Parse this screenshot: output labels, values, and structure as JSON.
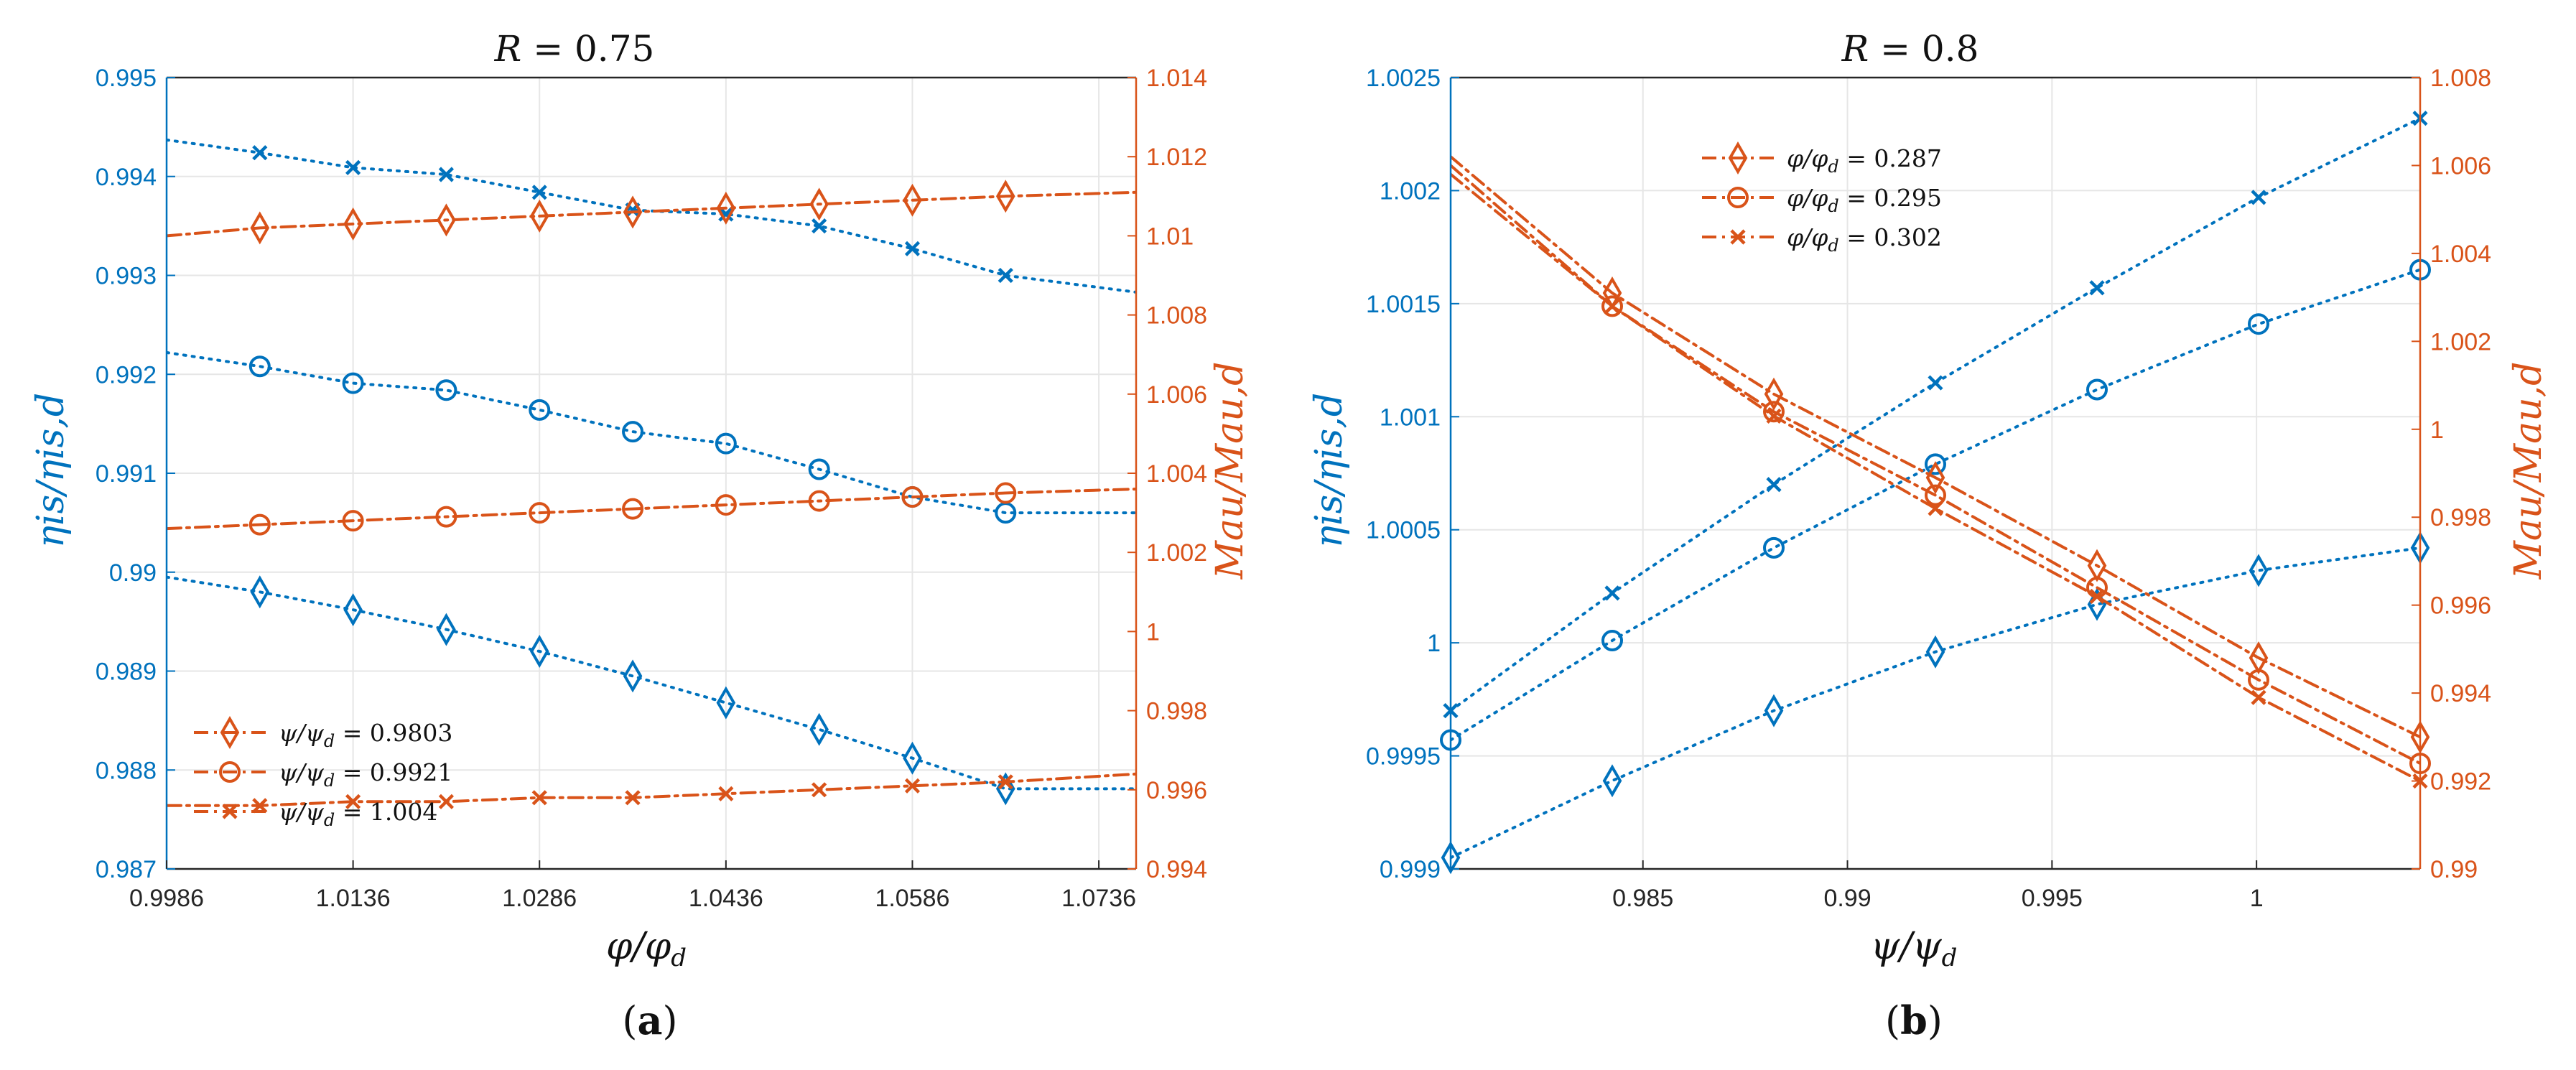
{
  "colors": {
    "left": "#0072BD",
    "right": "#D95319",
    "grid": "#e6e6e6",
    "axis": "#262626"
  },
  "chart_data": [
    {
      "type": "line",
      "title": "R = 0.75",
      "title_var": "R",
      "title_rest": " = 0.75",
      "caption": "a",
      "xlabel": "φ/φd",
      "xlabel_main": "φ/φ",
      "xlabel_sub": "d",
      "ylabel_left": "ηis/ηis,d",
      "ylabel_right": "Mau/Mau,d",
      "xlim": [
        0.9986,
        1.0766
      ],
      "ylim_left": [
        0.987,
        0.995
      ],
      "ylim_right": [
        0.994,
        1.014
      ],
      "xticks": [
        0.9986,
        1.0136,
        1.0286,
        1.0436,
        1.0586,
        1.0736
      ],
      "xtick_labels": [
        "0.9986",
        "1.0136",
        "1.0286",
        "1.0436",
        "1.0586",
        "1.0736"
      ],
      "yticks_left": [
        0.987,
        0.988,
        0.989,
        0.99,
        0.991,
        0.992,
        0.993,
        0.994,
        0.995
      ],
      "ytick_labels_left": [
        "0.987",
        "0.988",
        "0.989",
        "0.99",
        "0.991",
        "0.992",
        "0.993",
        "0.994",
        "0.995"
      ],
      "yticks_right": [
        0.994,
        0.996,
        0.998,
        1.0,
        1.002,
        1.004,
        1.006,
        1.008,
        1.01,
        1.012,
        1.014
      ],
      "ytick_labels_right": [
        "0.994",
        "0.996",
        "0.998",
        "1",
        "1.002",
        "1.004",
        "1.006",
        "1.008",
        "1.01",
        "1.012",
        "1.014"
      ],
      "legend": [
        {
          "text": "ψ/ψd = 0.9803",
          "var": "ψ/ψ",
          "sub": "d",
          "value": " = 0.9803",
          "marker": "diamond"
        },
        {
          "text": "ψ/ψd = 0.9921",
          "var": "ψ/ψ",
          "sub": "d",
          "value": " = 0.9921",
          "marker": "circle"
        },
        {
          "text": "ψ/ψd = 1.004",
          "var": "ψ/ψ",
          "sub": "d",
          "value": " = 1.004",
          "marker": "x"
        }
      ],
      "series": [
        {
          "name": "ηis/ηis,d, ψ/ψd = 1.004",
          "axis": "left",
          "marker": "x",
          "style": "dotted",
          "x": [
            0.9986,
            1.0061,
            1.0136,
            1.0211,
            1.0286,
            1.0361,
            1.0436,
            1.0511,
            1.0586,
            1.0661,
            1.0766
          ],
          "y": [
            0.99437,
            0.99424,
            0.99409,
            0.99402,
            0.99384,
            0.99366,
            0.99362,
            0.9935,
            0.99327,
            0.993,
            0.99283
          ],
          "marker_x": [
            1.0061,
            1.0136,
            1.0211,
            1.0286,
            1.0361,
            1.0436,
            1.0511,
            1.0586,
            1.0661
          ]
        },
        {
          "name": "ηis/ηis,d, ψ/ψd = 0.9921",
          "axis": "left",
          "marker": "circle",
          "style": "dotted",
          "x": [
            0.9986,
            1.0061,
            1.0136,
            1.0211,
            1.0286,
            1.0361,
            1.0436,
            1.0511,
            1.0586,
            1.0661,
            1.0766
          ],
          "y": [
            0.99222,
            0.99208,
            0.99191,
            0.99184,
            0.99164,
            0.99142,
            0.9913,
            0.99104,
            0.99076,
            0.9906,
            0.9906
          ],
          "marker_x": [
            1.0061,
            1.0136,
            1.0211,
            1.0286,
            1.0361,
            1.0436,
            1.0511,
            1.0586,
            1.0661
          ]
        },
        {
          "name": "ηis/ηis,d, ψ/ψd = 0.9803",
          "axis": "left",
          "marker": "diamond",
          "style": "dotted",
          "x": [
            0.9986,
            1.0061,
            1.0136,
            1.0211,
            1.0286,
            1.0361,
            1.0436,
            1.0511,
            1.0586,
            1.0661,
            1.0766
          ],
          "y": [
            0.98995,
            0.9898,
            0.98962,
            0.98942,
            0.9892,
            0.98895,
            0.98868,
            0.98841,
            0.98812,
            0.98781,
            0.98781
          ],
          "marker_x": [
            1.0061,
            1.0136,
            1.0211,
            1.0286,
            1.0361,
            1.0436,
            1.0511,
            1.0586,
            1.0661
          ]
        },
        {
          "name": "Mau/Mau,d, ψ/ψd = 0.9803",
          "axis": "right",
          "marker": "diamond",
          "style": "dashdot",
          "x": [
            0.9986,
            1.0061,
            1.0136,
            1.0211,
            1.0286,
            1.0361,
            1.0436,
            1.0511,
            1.0586,
            1.0661,
            1.0766
          ],
          "y": [
            1.01,
            1.0102,
            1.0103,
            1.0104,
            1.0105,
            1.0106,
            1.0107,
            1.0108,
            1.0109,
            1.011,
            1.0111
          ],
          "marker_x": [
            1.0061,
            1.0136,
            1.0211,
            1.0286,
            1.0361,
            1.0436,
            1.0511,
            1.0586,
            1.0661
          ]
        },
        {
          "name": "Mau/Mau,d, ψ/ψd = 0.9921",
          "axis": "right",
          "marker": "circle",
          "style": "dashdot",
          "x": [
            0.9986,
            1.0061,
            1.0136,
            1.0211,
            1.0286,
            1.0361,
            1.0436,
            1.0511,
            1.0586,
            1.0661,
            1.0766
          ],
          "y": [
            1.0026,
            1.0027,
            1.0028,
            1.0029,
            1.003,
            1.0031,
            1.0032,
            1.0033,
            1.0034,
            1.0035,
            1.0036
          ],
          "marker_x": [
            1.0061,
            1.0136,
            1.0211,
            1.0286,
            1.0361,
            1.0436,
            1.0511,
            1.0586,
            1.0661
          ]
        },
        {
          "name": "Mau/Mau,d, ψ/ψd = 1.004",
          "axis": "right",
          "marker": "x",
          "style": "dashdot",
          "x": [
            0.9986,
            1.0061,
            1.0136,
            1.0211,
            1.0286,
            1.0361,
            1.0436,
            1.0511,
            1.0586,
            1.0661,
            1.0766
          ],
          "y": [
            0.9956,
            0.9956,
            0.9957,
            0.9957,
            0.9958,
            0.9958,
            0.9959,
            0.996,
            0.9961,
            0.9962,
            0.9964
          ],
          "marker_x": [
            1.0061,
            1.0136,
            1.0211,
            1.0286,
            1.0361,
            1.0436,
            1.0511,
            1.0586,
            1.0661
          ]
        }
      ]
    },
    {
      "type": "line",
      "title": "R = 0.8",
      "title_var": "R",
      "title_rest": " = 0.8",
      "caption": "b",
      "xlabel": "ψ/ψd",
      "xlabel_main": "ψ/ψ",
      "xlabel_sub": "d",
      "ylabel_left": "ηis/ηis,d",
      "ylabel_right": "Mau/Mau,d",
      "xlim": [
        0.9803,
        1.004
      ],
      "ylim_left": [
        0.999,
        1.0025
      ],
      "ylim_right": [
        0.99,
        1.008
      ],
      "xticks": [
        0.985,
        0.99,
        0.995,
        1.0
      ],
      "xtick_labels": [
        "0.985",
        "0.99",
        "0.995",
        "1"
      ],
      "yticks_left": [
        0.999,
        0.9995,
        1.0,
        1.0005,
        1.001,
        1.0015,
        1.002,
        1.0025
      ],
      "ytick_labels_left": [
        "0.999",
        "0.9995",
        "1",
        "1.0005",
        "1.001",
        "1.0015",
        "1.002",
        "1.0025"
      ],
      "yticks_right": [
        0.99,
        0.992,
        0.994,
        0.996,
        0.998,
        1.0,
        1.002,
        1.004,
        1.006,
        1.008
      ],
      "ytick_labels_right": [
        "0.99",
        "0.992",
        "0.994",
        "0.996",
        "0.998",
        "1",
        "1.002",
        "1.004",
        "1.006",
        "1.008"
      ],
      "legend": [
        {
          "text": "φ/φd = 0.287",
          "var": "φ/φ",
          "sub": "d",
          "value": " = 0.287",
          "marker": "diamond"
        },
        {
          "text": "φ/φd = 0.295",
          "var": "φ/φ",
          "sub": "d",
          "value": " = 0.295",
          "marker": "circle"
        },
        {
          "text": "φ/φd = 0.302",
          "var": "φ/φ",
          "sub": "d",
          "value": " = 0.302",
          "marker": "x"
        }
      ],
      "series": [
        {
          "name": "ηis/ηis,d, φ/φd = 0.302",
          "axis": "left",
          "marker": "x",
          "style": "dotted",
          "x": [
            0.9803,
            0.98425,
            0.9882,
            0.99215,
            0.9961,
            1.00005,
            1.004
          ],
          "y": [
            0.9997,
            1.00022,
            1.0007,
            1.00115,
            1.00157,
            1.00197,
            1.00232
          ],
          "marker_x": [
            0.9803,
            0.98425,
            0.9882,
            0.99215,
            0.9961,
            1.00005,
            1.004
          ]
        },
        {
          "name": "ηis/ηis,d, φ/φd = 0.295",
          "axis": "left",
          "marker": "circle",
          "style": "dotted",
          "x": [
            0.9803,
            0.98425,
            0.9882,
            0.99215,
            0.9961,
            1.00005,
            1.004
          ],
          "y": [
            0.99957,
            1.00001,
            1.00042,
            1.00079,
            1.00112,
            1.00141,
            1.00165
          ],
          "marker_x": [
            0.9803,
            0.98425,
            0.9882,
            0.99215,
            0.9961,
            1.00005,
            1.004
          ]
        },
        {
          "name": "ηis/ηis,d, φ/φd = 0.287",
          "axis": "left",
          "marker": "diamond",
          "style": "dotted",
          "x": [
            0.9803,
            0.98425,
            0.9882,
            0.99215,
            0.9961,
            1.00005,
            1.004
          ],
          "y": [
            0.99905,
            0.99939,
            0.9997,
            0.99996,
            1.00017,
            1.00032,
            1.00042
          ],
          "marker_x": [
            0.9803,
            0.98425,
            0.9882,
            0.99215,
            0.9961,
            1.00005,
            1.004
          ]
        },
        {
          "name": "Mau/Mau,d, φ/φd = 0.287",
          "axis": "right",
          "marker": "diamond",
          "style": "dashdot",
          "x": [
            0.9803,
            0.98425,
            0.9882,
            0.99215,
            0.9961,
            1.00005,
            1.004
          ],
          "y": [
            1.0062,
            1.0031,
            1.0008,
            0.9989,
            0.9969,
            0.9948,
            0.993
          ],
          "marker_x": [
            0.98425,
            0.9882,
            0.99215,
            0.9961,
            1.00005,
            1.004
          ]
        },
        {
          "name": "Mau/Mau,d, φ/φd = 0.295",
          "axis": "right",
          "marker": "circle",
          "style": "dashdot",
          "x": [
            0.9803,
            0.98425,
            0.9882,
            0.99215,
            0.9961,
            1.00005,
            1.004
          ],
          "y": [
            1.006,
            1.0028,
            1.0004,
            0.9985,
            0.9964,
            0.9943,
            0.9924
          ],
          "marker_x": [
            0.98425,
            0.9882,
            0.99215,
            0.9961,
            1.00005,
            1.004
          ]
        },
        {
          "name": "Mau/Mau,d, φ/φd = 0.302",
          "axis": "right",
          "marker": "x",
          "style": "dashdot",
          "x": [
            0.9803,
            0.98425,
            0.9882,
            0.99215,
            0.9961,
            1.00005,
            1.004
          ],
          "y": [
            1.0058,
            1.0028,
            1.0003,
            0.9982,
            0.9962,
            0.9939,
            0.992
          ],
          "marker_x": [
            0.98425,
            0.9882,
            0.99215,
            0.9961,
            1.00005,
            1.004
          ]
        }
      ]
    }
  ]
}
